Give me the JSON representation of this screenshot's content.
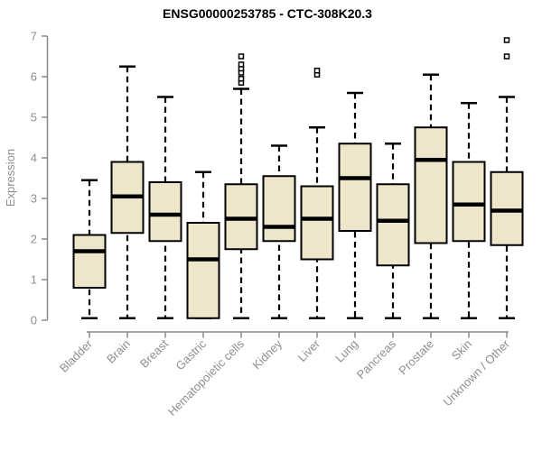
{
  "header": {
    "title": "ENSG00000253785 - CTC-308K20.3"
  },
  "chart_data": {
    "type": "box",
    "title": "ENSG00000253785 - CTC-308K20.3",
    "xlabel": "",
    "ylabel": "Expression",
    "ylim": [
      0,
      7
    ],
    "yticks": [
      0,
      1,
      2,
      3,
      4,
      5,
      6,
      7
    ],
    "grid": false,
    "legend": "none",
    "colors": {
      "box_fill": "#EDE6CA",
      "box_stroke": "#000000",
      "median": "#000000",
      "whisker": "#000000",
      "outlier_fill": "#ffffff",
      "axis": "#8a8a8a",
      "label": "#8f8f8f",
      "title": "#000000"
    },
    "categories": [
      "Bladder",
      "Brain",
      "Breast",
      "Gastric",
      "Hematopoietic cells",
      "Kidney",
      "Liver",
      "Lung",
      "Pancreas",
      "Prostate",
      "Skin",
      "Unknown / Other"
    ],
    "series": [
      {
        "name": "Bladder",
        "whisker_low": 0.05,
        "q1": 0.8,
        "median": 1.7,
        "q3": 2.1,
        "whisker_high": 3.45,
        "outliers": []
      },
      {
        "name": "Brain",
        "whisker_low": 0.05,
        "q1": 2.15,
        "median": 3.05,
        "q3": 3.9,
        "whisker_high": 6.25,
        "outliers": []
      },
      {
        "name": "Breast",
        "whisker_low": 0.05,
        "q1": 1.95,
        "median": 2.6,
        "q3": 3.4,
        "whisker_high": 5.5,
        "outliers": []
      },
      {
        "name": "Gastric",
        "whisker_low": 0.05,
        "q1": 0.05,
        "median": 1.5,
        "q3": 2.4,
        "whisker_high": 3.65,
        "outliers": []
      },
      {
        "name": "Hematopoietic cells",
        "whisker_low": 0.05,
        "q1": 1.75,
        "median": 2.5,
        "q3": 3.35,
        "whisker_high": 5.7,
        "outliers": [
          5.85,
          5.95,
          6.1,
          6.2,
          6.3,
          6.5
        ]
      },
      {
        "name": "Kidney",
        "whisker_low": 0.05,
        "q1": 1.95,
        "median": 2.3,
        "q3": 3.55,
        "whisker_high": 4.3,
        "outliers": []
      },
      {
        "name": "Liver",
        "whisker_low": 0.05,
        "q1": 1.5,
        "median": 2.5,
        "q3": 3.3,
        "whisker_high": 4.75,
        "outliers": [
          6.05,
          6.15
        ]
      },
      {
        "name": "Lung",
        "whisker_low": 0.05,
        "q1": 2.2,
        "median": 3.5,
        "q3": 4.35,
        "whisker_high": 5.6,
        "outliers": []
      },
      {
        "name": "Pancreas",
        "whisker_low": 0.05,
        "q1": 1.35,
        "median": 2.45,
        "q3": 3.35,
        "whisker_high": 4.35,
        "outliers": []
      },
      {
        "name": "Prostate",
        "whisker_low": 0.05,
        "q1": 1.9,
        "median": 3.95,
        "q3": 4.75,
        "whisker_high": 6.05,
        "outliers": []
      },
      {
        "name": "Skin",
        "whisker_low": 0.05,
        "q1": 1.95,
        "median": 2.85,
        "q3": 3.9,
        "whisker_high": 5.35,
        "outliers": []
      },
      {
        "name": "Unknown / Other",
        "whisker_low": 0.05,
        "q1": 1.85,
        "median": 2.7,
        "q3": 3.65,
        "whisker_high": 5.5,
        "outliers": [
          6.5,
          6.9
        ]
      }
    ]
  }
}
